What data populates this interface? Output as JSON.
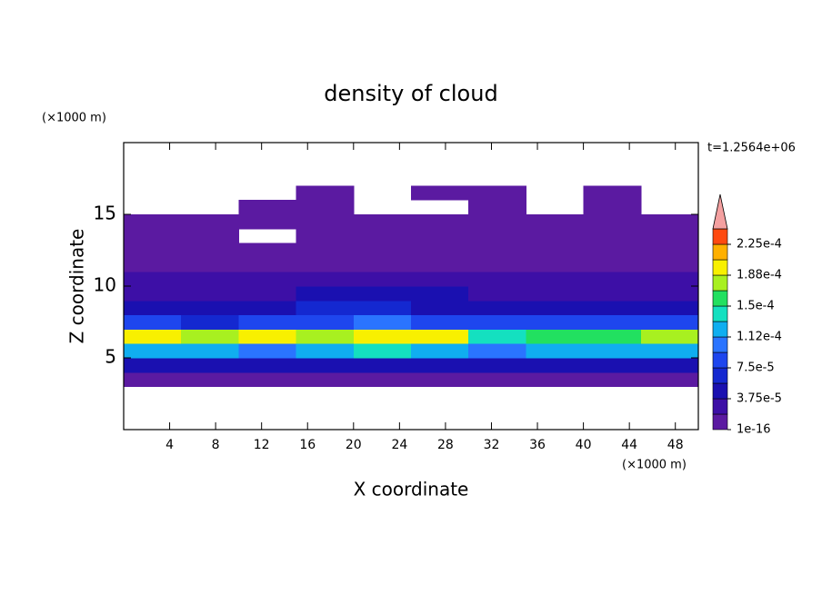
{
  "chart_data": {
    "type": "contour",
    "title": "density of cloud",
    "subtitle": "t=1.2564e+06",
    "xlabel": "X coordinate",
    "ylabel": "Z coordinate",
    "xunit": "(×1000 m)",
    "yunit": "(×1000 m)",
    "xlim": [
      0,
      50
    ],
    "ylim": [
      0,
      20
    ],
    "xticks": [
      4,
      8,
      12,
      16,
      20,
      24,
      28,
      32,
      36,
      40,
      44,
      48
    ],
    "yticks": [
      5,
      10,
      15
    ],
    "x_edges": [
      0,
      5,
      10,
      15,
      20,
      25,
      30,
      35,
      40,
      45,
      50
    ],
    "z_edges": [
      3,
      4,
      5,
      6,
      7,
      8,
      9,
      10,
      11,
      12,
      13,
      14,
      15,
      16,
      17
    ],
    "values": [
      [
        1e-05,
        1e-05,
        1e-05,
        1e-05,
        1e-05,
        1e-05,
        1e-05,
        1e-05,
        1e-05,
        1e-05
      ],
      [
        4.5e-05,
        5e-05,
        4.5e-05,
        5e-05,
        5e-05,
        5e-05,
        4e-05,
        4.5e-05,
        5e-05,
        5e-05
      ],
      [
        0.00012,
        0.000125,
        0.00011,
        0.00013,
        0.000135,
        0.00013,
        0.00011,
        0.00012,
        0.000125,
        0.00012
      ],
      [
        0.00019,
        0.00018,
        0.00019,
        0.000185,
        0.000195,
        0.00019,
        0.00014,
        0.000155,
        0.00016,
        0.00017
      ],
      [
        8e-05,
        7e-05,
        8.5e-05,
        9e-05,
        9.5e-05,
        9e-05,
        8e-05,
        7.5e-05,
        8e-05,
        7.5e-05
      ],
      [
        5e-05,
        5e-05,
        5.5e-05,
        6e-05,
        6.5e-05,
        5.5e-05,
        5e-05,
        5e-05,
        5e-05,
        5e-05
      ],
      [
        3.5e-05,
        3.5e-05,
        3.5e-05,
        4e-05,
        4.5e-05,
        4e-05,
        3.5e-05,
        3.5e-05,
        3.5e-05,
        3.5e-05
      ],
      [
        2.5e-05,
        2.5e-05,
        2.5e-05,
        2.5e-05,
        3e-05,
        2.5e-05,
        2.5e-05,
        2.5e-05,
        2.5e-05,
        2.5e-05
      ],
      [
        1.5e-05,
        1.5e-05,
        1.5e-05,
        1.5e-05,
        1.5e-05,
        1.5e-05,
        1.5e-05,
        1.5e-05,
        1.5e-05,
        1.5e-05
      ],
      [
        1e-05,
        1e-05,
        1e-05,
        1e-05,
        1e-05,
        1e-05,
        1e-05,
        1e-05,
        1e-05,
        1e-05
      ],
      [
        8e-06,
        8e-06,
        null,
        8e-06,
        8e-06,
        8e-06,
        8e-06,
        8e-06,
        8e-06,
        8e-06
      ],
      [
        5e-06,
        5e-06,
        5e-06,
        5e-06,
        5e-06,
        5e-06,
        5e-06,
        5e-06,
        5e-06,
        5e-06
      ],
      [
        null,
        null,
        5e-06,
        5e-06,
        null,
        null,
        5e-06,
        null,
        5e-06,
        null
      ],
      [
        null,
        null,
        null,
        5e-06,
        null,
        5e-06,
        5e-06,
        null,
        5e-06,
        null
      ]
    ],
    "levels": [
      1e-16,
      1.875e-05,
      3.75e-05,
      5.625e-05,
      7.5e-05,
      9.375e-05,
      0.0001125,
      0.00013125,
      0.00015,
      0.00016875,
      0.0001875,
      0.00020625,
      0.000225,
      0.00024375
    ],
    "colors": [
      "#5b1aa1",
      "#3d0fa6",
      "#1a10b0",
      "#1428d0",
      "#1e46ee",
      "#2a74ff",
      "#10aef0",
      "#14e0c0",
      "#22e060",
      "#a8f020",
      "#f8f000",
      "#ffb000",
      "#ff4a10"
    ],
    "extend_color": "#f4a0a0",
    "colorbar_ticks": [
      1e-16,
      {
        "value": 3.75e-05,
        "label": "3.75e-5"
      },
      {
        "value": 7.5e-05,
        "label": "7.5e-5"
      },
      {
        "value": 0.0001125,
        "label": "1.12e-4"
      },
      {
        "value": 0.00015,
        "label": "1.5e-4"
      },
      {
        "value": 0.0001875,
        "label": "1.88e-4"
      },
      {
        "value": 0.000225,
        "label": "2.25e-4"
      }
    ]
  }
}
